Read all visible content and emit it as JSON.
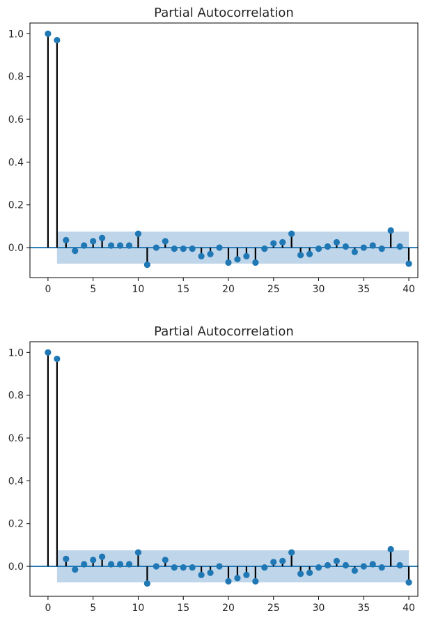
{
  "chart_data": [
    {
      "type": "stem",
      "title": "Partial Autocorrelation",
      "xlim": [
        -2,
        41
      ],
      "ylim": [
        -0.14,
        1.05
      ],
      "xticks": [
        0,
        5,
        10,
        15,
        20,
        25,
        30,
        35,
        40
      ],
      "yticks": [
        0.0,
        0.2,
        0.4,
        0.6,
        0.8,
        1.0
      ],
      "ytick_labels": [
        "0.0",
        "0.2",
        "0.4",
        "0.6",
        "0.8",
        "1.0"
      ],
      "confidence_band": {
        "x_start": 1,
        "x_end": 40,
        "lower": -0.075,
        "upper": 0.075
      },
      "x": [
        0,
        1,
        2,
        3,
        4,
        5,
        6,
        7,
        8,
        9,
        10,
        11,
        12,
        13,
        14,
        15,
        16,
        17,
        18,
        19,
        20,
        21,
        22,
        23,
        24,
        25,
        26,
        27,
        28,
        29,
        30,
        31,
        32,
        33,
        34,
        35,
        36,
        37,
        38,
        39,
        40
      ],
      "values": [
        1.0,
        0.97,
        0.035,
        -0.015,
        0.01,
        0.03,
        0.045,
        0.01,
        0.01,
        0.01,
        0.065,
        -0.08,
        0.0,
        0.03,
        -0.005,
        -0.005,
        -0.005,
        -0.04,
        -0.03,
        0.0,
        -0.07,
        -0.055,
        -0.04,
        -0.07,
        -0.005,
        0.02,
        0.025,
        0.065,
        -0.035,
        -0.03,
        -0.005,
        0.005,
        0.025,
        0.005,
        -0.02,
        0.0,
        0.01,
        -0.005,
        0.08,
        0.005,
        -0.075
      ],
      "colors": {
        "marker": "#1f77b4",
        "stem": "#000000",
        "band": "#b8d0e8",
        "zero_line": "#1f77b4",
        "axis": "#000000"
      }
    },
    {
      "type": "stem",
      "title": "Partial Autocorrelation",
      "xlim": [
        -2,
        41
      ],
      "ylim": [
        -0.14,
        1.05
      ],
      "xticks": [
        0,
        5,
        10,
        15,
        20,
        25,
        30,
        35,
        40
      ],
      "yticks": [
        0.0,
        0.2,
        0.4,
        0.6,
        0.8,
        1.0
      ],
      "ytick_labels": [
        "0.0",
        "0.2",
        "0.4",
        "0.6",
        "0.8",
        "1.0"
      ],
      "confidence_band": {
        "x_start": 1,
        "x_end": 40,
        "lower": -0.075,
        "upper": 0.075
      },
      "x": [
        0,
        1,
        2,
        3,
        4,
        5,
        6,
        7,
        8,
        9,
        10,
        11,
        12,
        13,
        14,
        15,
        16,
        17,
        18,
        19,
        20,
        21,
        22,
        23,
        24,
        25,
        26,
        27,
        28,
        29,
        30,
        31,
        32,
        33,
        34,
        35,
        36,
        37,
        38,
        39,
        40
      ],
      "values": [
        1.0,
        0.97,
        0.035,
        -0.015,
        0.01,
        0.03,
        0.045,
        0.01,
        0.01,
        0.01,
        0.065,
        -0.08,
        0.0,
        0.03,
        -0.005,
        -0.005,
        -0.005,
        -0.04,
        -0.03,
        0.0,
        -0.07,
        -0.055,
        -0.04,
        -0.07,
        -0.005,
        0.02,
        0.025,
        0.065,
        -0.035,
        -0.03,
        -0.005,
        0.005,
        0.025,
        0.005,
        -0.02,
        0.0,
        0.01,
        -0.005,
        0.08,
        0.005,
        -0.075
      ],
      "colors": {
        "marker": "#1f77b4",
        "stem": "#000000",
        "band": "#b8d0e8",
        "zero_line": "#1f77b4",
        "axis": "#000000"
      }
    }
  ]
}
